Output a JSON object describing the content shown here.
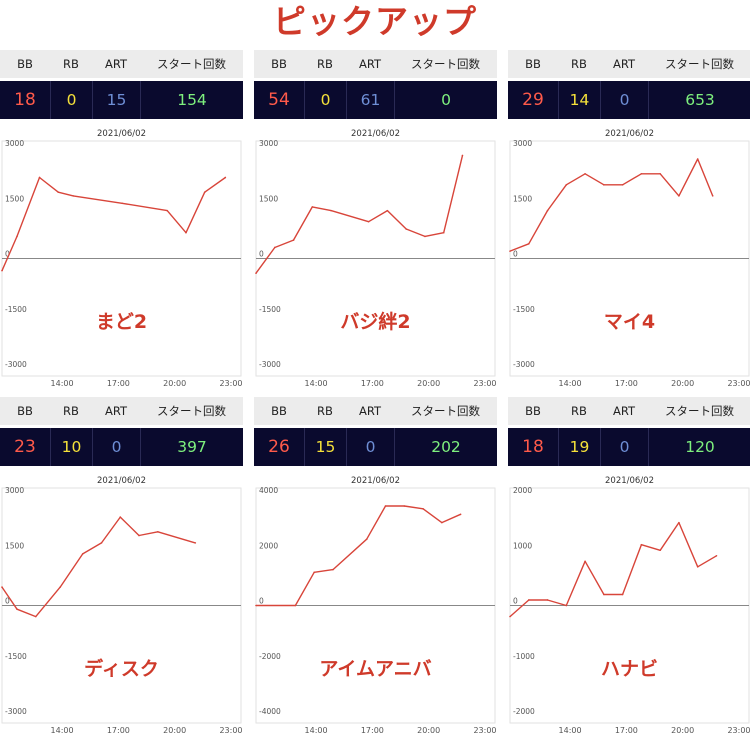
{
  "page_title": "ピックアップ",
  "columns": {
    "bb": "BB",
    "rb": "RB",
    "art": "ART",
    "start": "スタート回数"
  },
  "colors": {
    "title": "#cf3a2a",
    "line": "#d8453a",
    "machine_label": "#cf3a2a",
    "bb_value": "#ff5a4a",
    "rb_value": "#f5e13a",
    "art_value": "#6f8fd6",
    "start_value": "#7ef07e",
    "stats_bg": "#0a0a2e"
  },
  "machines": [
    {
      "name": "まど2",
      "bb": "18",
      "rb": "0",
      "art": "15",
      "start": "154"
    },
    {
      "name": "バジ絆2",
      "bb": "54",
      "rb": "0",
      "art": "61",
      "start": "0"
    },
    {
      "name": "マイ4",
      "bb": "29",
      "rb": "14",
      "art": "0",
      "start": "653"
    },
    {
      "name": "ディスク",
      "bb": "23",
      "rb": "10",
      "art": "0",
      "start": "397"
    },
    {
      "name": "アイムアニバ",
      "bb": "26",
      "rb": "15",
      "art": "0",
      "start": "202"
    },
    {
      "name": "ハナビ",
      "bb": "18",
      "rb": "19",
      "art": "0",
      "start": "120"
    }
  ],
  "chart_data": [
    {
      "type": "line",
      "title": "2021/06/02",
      "x_ticks": [
        "14:00",
        "17:00",
        "20:00",
        "23:00"
      ],
      "y_ticks": [
        "3000",
        "1500",
        "0",
        "-1500",
        "-3000"
      ],
      "ylim": [
        -3000,
        3000
      ],
      "xlim": [
        10.8,
        23.0
      ],
      "x": [
        10.8,
        11.6,
        12.8,
        13.8,
        14.6,
        17.2,
        19.6,
        20.6,
        21.6,
        22.7
      ],
      "y": [
        -330,
        600,
        2200,
        1800,
        1700,
        1500,
        1300,
        700,
        1800,
        2200
      ]
    },
    {
      "type": "line",
      "title": "2021/06/02",
      "x_ticks": [
        "14:00",
        "17:00",
        "20:00",
        "23:00"
      ],
      "y_ticks": [
        "3000",
        "1500",
        "0",
        "-1500",
        "-3000"
      ],
      "ylim": [
        -3000,
        3000
      ],
      "xlim": [
        10.8,
        23.0
      ],
      "x": [
        10.8,
        11.8,
        12.8,
        13.8,
        14.8,
        16.8,
        17.8,
        18.8,
        19.8,
        20.8,
        21.8
      ],
      "y": [
        -400,
        300,
        500,
        1400,
        1300,
        1000,
        1300,
        800,
        600,
        700,
        2800
      ]
    },
    {
      "type": "line",
      "title": "2021/06/02",
      "x_ticks": [
        "14:00",
        "17:00",
        "20:00",
        "23:00"
      ],
      "y_ticks": [
        "3000",
        "1500",
        "0",
        "-1500",
        "-3000"
      ],
      "ylim": [
        -3000,
        3000
      ],
      "xlim": [
        10.8,
        23.0
      ],
      "x": [
        10.8,
        11.8,
        12.8,
        13.8,
        14.8,
        15.8,
        16.8,
        17.8,
        18.8,
        19.8,
        20.8,
        21.6
      ],
      "y": [
        200,
        400,
        1300,
        2000,
        2300,
        2000,
        2000,
        2300,
        2300,
        1700,
        2700,
        1700
      ]
    },
    {
      "type": "line",
      "title": "2021/06/02",
      "x_ticks": [
        "14:00",
        "17:00",
        "20:00",
        "23:00"
      ],
      "y_ticks": [
        "3000",
        "1500",
        "0",
        "-1500",
        "-3000"
      ],
      "ylim": [
        -3000,
        3000
      ],
      "xlim": [
        10.8,
        23.0
      ],
      "x": [
        10.8,
        11.6,
        12.6,
        13.9,
        15.1,
        16.1,
        17.1,
        18.1,
        19.1,
        21.1
      ],
      "y": [
        500,
        -100,
        -300,
        500,
        1400,
        1700,
        2400,
        1900,
        2000,
        1700
      ]
    },
    {
      "type": "line",
      "title": "2021/06/02",
      "x_ticks": [
        "14:00",
        "17:00",
        "20:00",
        "23:00"
      ],
      "y_ticks": [
        "4000",
        "2000",
        "0",
        "-2000",
        "-4000"
      ],
      "ylim": [
        -4000,
        4000
      ],
      "xlim": [
        10.8,
        23.0
      ],
      "x": [
        10.8,
        12.9,
        13.9,
        14.9,
        16.7,
        17.7,
        18.7,
        19.7,
        20.7,
        21.7
      ],
      "y": [
        0,
        0,
        1200,
        1300,
        2400,
        3600,
        3600,
        3500,
        3000,
        3300
      ]
    },
    {
      "type": "line",
      "title": "2021/06/02",
      "x_ticks": [
        "14:00",
        "17:00",
        "20:00",
        "23:00"
      ],
      "y_ticks": [
        "2000",
        "1000",
        "0",
        "-1000",
        "-2000"
      ],
      "ylim": [
        -2000,
        2000
      ],
      "xlim": [
        10.8,
        23.0
      ],
      "x": [
        10.8,
        11.8,
        12.8,
        13.8,
        14.8,
        15.8,
        16.8,
        17.8,
        18.8,
        19.8,
        20.8,
        21.8
      ],
      "y": [
        -200,
        100,
        100,
        0,
        800,
        200,
        200,
        1100,
        1000,
        1500,
        700,
        900
      ]
    }
  ]
}
